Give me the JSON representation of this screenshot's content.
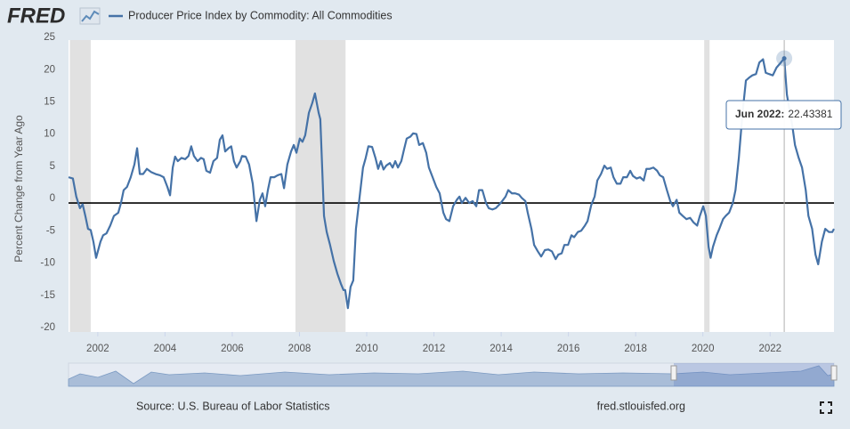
{
  "header": {
    "logo": "FRED"
  },
  "chart_data": {
    "type": "line",
    "ylabel": "Percent Change from Year Ago",
    "series": [
      {
        "name": "Producer Price Index by Commodity: All Commodities",
        "color": "#4572a7",
        "x": [
          2001.13,
          2001.26,
          2001.36,
          2001.47,
          2001.55,
          2001.63,
          2001.71,
          2001.79,
          2001.87,
          2001.95,
          2002.08,
          2002.16,
          2002.26,
          2002.37,
          2002.48,
          2002.61,
          2002.69,
          2002.77,
          2002.87,
          2002.98,
          2003.09,
          2003.17,
          2003.25,
          2003.35,
          2003.46,
          2003.59,
          2003.72,
          2003.85,
          2003.96,
          2004.07,
          2004.15,
          2004.23,
          2004.3,
          2004.38,
          2004.49,
          2004.6,
          2004.7,
          2004.78,
          2004.86,
          2004.97,
          2005.07,
          2005.15,
          2005.23,
          2005.34,
          2005.44,
          2005.55,
          2005.63,
          2005.71,
          2005.79,
          2005.89,
          2005.97,
          2006.05,
          2006.13,
          2006.24,
          2006.29,
          2006.4,
          2006.5,
          2006.61,
          2006.72,
          2006.82,
          2006.9,
          2006.98,
          2007.06,
          2007.14,
          2007.25,
          2007.35,
          2007.46,
          2007.54,
          2007.64,
          2007.75,
          2007.83,
          2007.91,
          2008.01,
          2008.09,
          2008.17,
          2008.28,
          2008.38,
          2008.46,
          2008.57,
          2008.62,
          2008.73,
          2008.81,
          2008.91,
          2009.02,
          2009.13,
          2009.23,
          2009.31,
          2009.36,
          2009.44,
          2009.52,
          2009.6,
          2009.68,
          2009.79,
          2009.89,
          2009.97,
          2010.05,
          2010.16,
          2010.26,
          2010.34,
          2010.42,
          2010.5,
          2010.58,
          2010.69,
          2010.77,
          2010.85,
          2010.93,
          2011.03,
          2011.11,
          2011.19,
          2011.3,
          2011.38,
          2011.48,
          2011.56,
          2011.67,
          2011.77,
          2011.85,
          2011.96,
          2012.07,
          2012.17,
          2012.28,
          2012.36,
          2012.46,
          2012.57,
          2012.68,
          2012.76,
          2012.83,
          2012.94,
          2013.05,
          2013.15,
          2013.26,
          2013.34,
          2013.44,
          2013.55,
          2013.63,
          2013.74,
          2013.84,
          2013.95,
          2014.03,
          2014.13,
          2014.21,
          2014.32,
          2014.42,
          2014.53,
          2014.61,
          2014.72,
          2014.79,
          2014.9,
          2014.98,
          2015.09,
          2015.19,
          2015.3,
          2015.4,
          2015.51,
          2015.62,
          2015.7,
          2015.8,
          2015.88,
          2015.99,
          2016.09,
          2016.17,
          2016.28,
          2016.38,
          2016.49,
          2016.57,
          2016.68,
          2016.78,
          2016.86,
          2016.97,
          2017.07,
          2017.15,
          2017.26,
          2017.34,
          2017.44,
          2017.55,
          2017.63,
          2017.74,
          2017.84,
          2017.92,
          2018.03,
          2018.13,
          2018.24,
          2018.32,
          2018.42,
          2018.53,
          2018.64,
          2018.72,
          2018.82,
          2018.93,
          2019.03,
          2019.11,
          2019.22,
          2019.3,
          2019.4,
          2019.51,
          2019.62,
          2019.72,
          2019.83,
          2019.91,
          2020.01,
          2020.09,
          2020.17,
          2020.23,
          2020.3,
          2020.41,
          2020.49,
          2020.6,
          2020.68,
          2020.78,
          2020.89,
          2020.97,
          2021.07,
          2021.18,
          2021.28,
          2021.39,
          2021.47,
          2021.58,
          2021.68,
          2021.79,
          2021.87,
          2021.97,
          2022.08,
          2022.19,
          2022.29,
          2022.42,
          2022.5,
          2022.56,
          2022.66,
          2022.74,
          2022.85,
          2022.95,
          2023.06,
          2023.14,
          2023.25,
          2023.35,
          2023.43,
          2023.54,
          2023.64,
          2023.75,
          2023.85,
          2023.9
        ],
        "values": [
          4,
          3.8,
          1,
          -0.8,
          -0.2,
          -2,
          -4,
          -4.2,
          -6,
          -8.5,
          -6,
          -5,
          -4.7,
          -3.5,
          -2,
          -1.5,
          0,
          2,
          2.5,
          4,
          6,
          8.5,
          4.5,
          4.5,
          5.3,
          4.8,
          4.5,
          4.3,
          4,
          2.5,
          1.2,
          5.5,
          7.2,
          6.5,
          7,
          6.8,
          7.3,
          8.8,
          7.3,
          6.5,
          7,
          6.8,
          5,
          4.7,
          6.5,
          7,
          9.8,
          10.5,
          8,
          8.5,
          8.8,
          6.5,
          5.5,
          6.5,
          7.3,
          7.2,
          6,
          3,
          -2.8,
          0.5,
          1.5,
          -0.5,
          2,
          4,
          4,
          4.3,
          4.5,
          2.3,
          6,
          8,
          9,
          7.8,
          10,
          9.5,
          10.5,
          14,
          15.5,
          17,
          14,
          13,
          -2,
          -4.5,
          -6.5,
          -9,
          -11,
          -12.5,
          -13.5,
          -13.5,
          -16.3,
          -13,
          -12,
          -4,
          1,
          5.5,
          7,
          8.8,
          8.7,
          7,
          5.3,
          6.5,
          5.2,
          5.8,
          6.2,
          5.5,
          6.5,
          5.5,
          6.5,
          8.3,
          10,
          10.3,
          10.8,
          10.7,
          9,
          9.3,
          7.8,
          5.5,
          4,
          2.5,
          1.5,
          -1.5,
          -2.5,
          -2.8,
          -0.5,
          0.5,
          1,
          0,
          0.8,
          0,
          0.3,
          -0.5,
          2,
          2,
          0,
          -0.8,
          -1,
          -0.8,
          -0.2,
          0.3,
          1,
          2,
          1.5,
          1.5,
          1.3,
          0.8,
          0.3,
          -1.5,
          -4,
          -6.5,
          -7.5,
          -8.3,
          -7.3,
          -7.2,
          -7.5,
          -8.7,
          -8,
          -7.8,
          -6.5,
          -6.5,
          -5,
          -5.3,
          -4.5,
          -4.3,
          -3.5,
          -2.8,
          -0.3,
          1,
          3.5,
          4.5,
          5.8,
          5.3,
          5.5,
          4,
          3,
          3,
          4,
          4,
          5,
          4.2,
          3.8,
          4,
          3.5,
          5.3,
          5.3,
          5.5,
          5,
          4.3,
          4,
          2,
          0.3,
          -0.5,
          0.5,
          -1.5,
          -2,
          -2.5,
          -2.3,
          -3,
          -3.5,
          -2,
          -0.5,
          -2,
          -6.8,
          -8.5,
          -6.8,
          -5,
          -4,
          -2.5,
          -2,
          -1.5,
          0,
          2,
          7,
          14,
          19,
          19.5,
          19.8,
          20,
          21.8,
          22.3,
          20.2,
          20,
          19.8,
          21,
          21.6,
          22.43381,
          16.8,
          15,
          12,
          9,
          7,
          5.5,
          2,
          -2,
          -4,
          -8,
          -9.5,
          -6,
          -4,
          -4.5,
          -4.5,
          -4
        ]
      }
    ],
    "xlim": [
      2001.13,
      2023.9
    ],
    "xticks": [
      2002,
      2004,
      2006,
      2008,
      2010,
      2012,
      2014,
      2016,
      2018,
      2020,
      2022
    ],
    "ylim": [
      -20,
      25
    ],
    "yticks": [
      -20,
      -15,
      -10,
      -5,
      0,
      5,
      10,
      15,
      20,
      25
    ],
    "grid": false,
    "recessions": [
      [
        2001.17,
        2001.79
      ],
      [
        2007.88,
        2009.37
      ],
      [
        2020.04,
        2020.2
      ]
    ],
    "tooltip": {
      "label": "Jun 2022:",
      "value": 22.43381
    }
  },
  "footer": {
    "source": "Source: U.S. Bureau of Labor Statistics",
    "site": "fred.stlouisfed.org"
  }
}
